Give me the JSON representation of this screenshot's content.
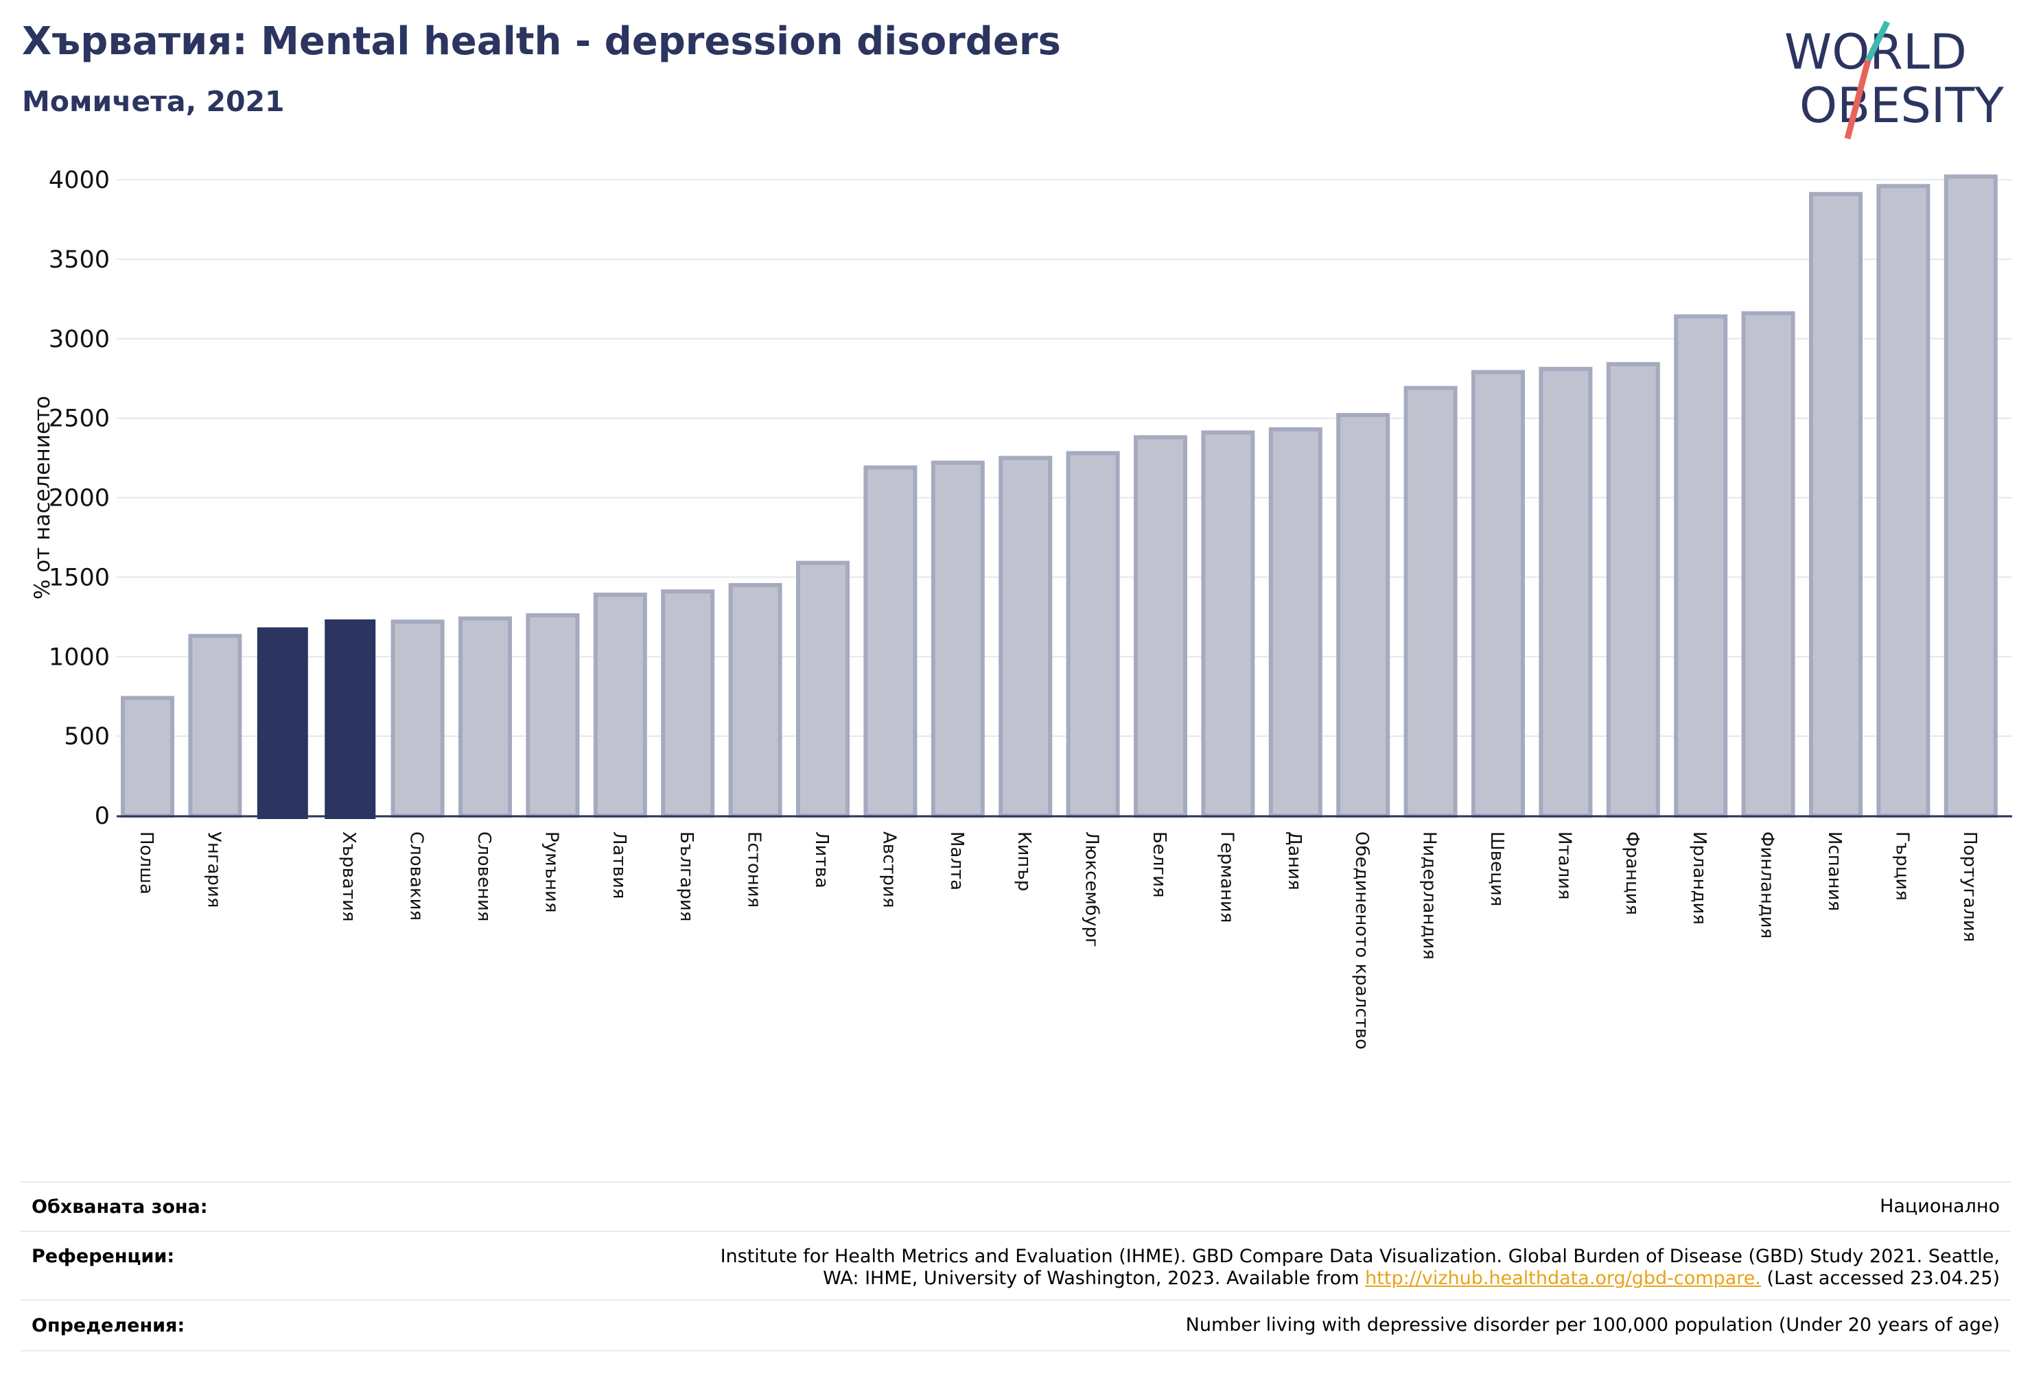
{
  "header": {
    "title": "Хърватия: Mental health - depression disorders",
    "subtitle": "Момичета, 2021"
  },
  "logo": {
    "line1": "WORLD",
    "line2": "OBESITY",
    "color_dark": "#2b3560",
    "color_teal": "#3fb8af",
    "color_red": "#e8645a"
  },
  "chart_data": {
    "type": "bar",
    "ylabel": "% от населението",
    "xlabel": "",
    "ylim": [
      0,
      4000
    ],
    "yticks": [
      0,
      500,
      1000,
      1500,
      2000,
      2500,
      3000,
      3500,
      4000
    ],
    "grid": true,
    "categories": [
      "Полша",
      "Унгария",
      "",
      "Хърватия",
      "Словакия",
      "Словения",
      "Румъния",
      "Латвия",
      "България",
      "Естония",
      "Литва",
      "Австрия",
      "Малта",
      "Кипър",
      "Люксембург",
      "Белгия",
      "Германия",
      "Дания",
      "Обединеното кралство",
      "Нидерландия",
      "Швеция",
      "Италия",
      "Франция",
      "Ирландия",
      "Финландия",
      "Испания",
      "Гърция",
      "Португалия"
    ],
    "values": [
      740,
      1130,
      1180,
      1230,
      1220,
      1240,
      1260,
      1390,
      1410,
      1450,
      1590,
      2190,
      2220,
      2250,
      2280,
      2380,
      2410,
      2430,
      2520,
      2690,
      2790,
      2810,
      2840,
      3140,
      3160,
      3910,
      3960,
      4020
    ],
    "highlight": [
      2,
      3
    ],
    "colors": {
      "bar": "#c0c3cf",
      "bar_edge": "#a5aabf",
      "highlight": "#2b3560"
    }
  },
  "footer": {
    "coverage_label": "Обхваната зона:",
    "coverage_value": "Национално",
    "references_label": "Референции:",
    "references_line1": "Institute for Health Metrics and Evaluation (IHME). GBD Compare Data Visualization. Global Burden of Disease (GBD) Study 2021. Seattle,",
    "references_line2_pre": "WA: IHME, University of Washington, 2023. Available from",
    "references_link": "http://vizhub.healthdata.org/gbd-compare.",
    "references_line2_post": "(Last accessed 23.04.25)",
    "definitions_label": "Определения:",
    "definitions_value": "Number living with depressive disorder per 100,000 population (Under 20 years of age)"
  }
}
